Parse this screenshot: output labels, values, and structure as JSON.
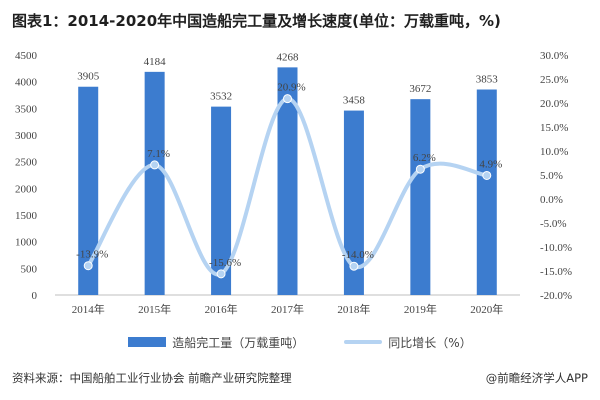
{
  "title": "图表1：2014-2020年中国造船完工量及增长速度(单位：万载重吨，%)",
  "chart_data": {
    "type": "bar",
    "categories": [
      "2014年",
      "2015年",
      "2016年",
      "2017年",
      "2018年",
      "2019年",
      "2020年"
    ],
    "series": [
      {
        "name": "造船完工量（万载重吨）",
        "type": "bar",
        "axis": "left",
        "color": "#3c7ccf",
        "values": [
          3905,
          4184,
          3532,
          4268,
          3458,
          3672,
          3853
        ],
        "labels": [
          "3905",
          "4184",
          "3532",
          "4268",
          "3458",
          "3672",
          "3853"
        ]
      },
      {
        "name": "同比增长（%）",
        "type": "line",
        "axis": "right",
        "color": "#b5d3f2",
        "smooth": true,
        "values": [
          -13.9,
          7.1,
          -15.6,
          20.9,
          -14.0,
          6.2,
          4.9
        ],
        "labels": [
          "-13.9%",
          "7.1%",
          "-15.6%",
          "20.9%",
          "-14.0%",
          "6.2%",
          "4.9%"
        ]
      }
    ],
    "y_left": {
      "min": 0,
      "max": 4500,
      "ticks": [
        "0",
        "500",
        "1000",
        "1500",
        "2000",
        "2500",
        "3000",
        "3500",
        "4000",
        "4500"
      ]
    },
    "y_right": {
      "min": -20,
      "max": 30,
      "ticks": [
        "-20.0%",
        "-15.0%",
        "-10.0%",
        "-5.0%",
        "0.0%",
        "5.0%",
        "10.0%",
        "15.0%",
        "20.0%",
        "25.0%",
        "30.0%"
      ]
    },
    "grid": false,
    "legend_position": "bottom"
  },
  "legend": {
    "bar_label": "造船完工量（万载重吨）",
    "line_label": "同比增长（%）"
  },
  "footer": {
    "source": "资料来源：中国船舶工业行业协会 前瞻产业研究院整理",
    "brand": "@前瞻经济学人APP"
  }
}
